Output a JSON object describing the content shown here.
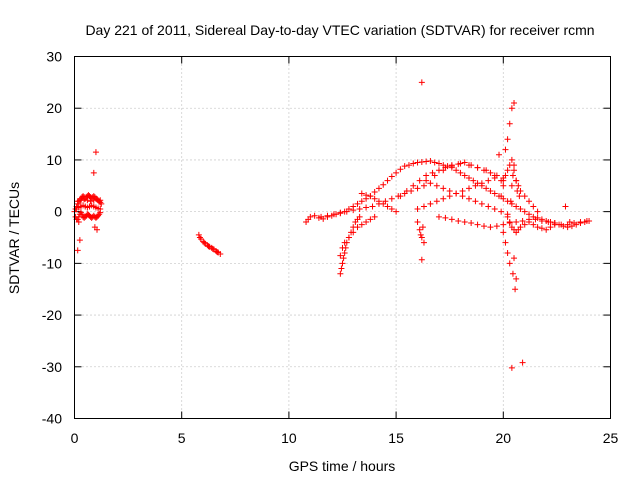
{
  "chart_data": {
    "type": "scatter",
    "title": "Day 221 of 2011, Sidereal Day-to-day VTEC variation (SDTVAR) for receiver rcmn",
    "xlabel": "GPS time / hours",
    "ylabel": "SDTVAR / TECUs",
    "xlim": [
      0,
      25
    ],
    "ylim": [
      -40,
      30
    ],
    "xticks": [
      0,
      5,
      10,
      15,
      20,
      25
    ],
    "yticks": [
      -40,
      -30,
      -20,
      -10,
      0,
      10,
      20,
      30
    ],
    "xtick_labels": [
      "0",
      "5",
      "10",
      "15",
      "20",
      "25"
    ],
    "ytick_labels": [
      "-40",
      "-30",
      "-20",
      "-10",
      "0",
      "10",
      "20",
      "30"
    ],
    "grid": true,
    "marker": "plus",
    "color": "#ff0000",
    "series": [
      {
        "name": "SDTVAR",
        "x": [
          0.0,
          0.05,
          0.1,
          0.15,
          0.2,
          0.25,
          0.3,
          0.35,
          0.4,
          0.45,
          0.5,
          0.55,
          0.6,
          0.65,
          0.7,
          0.75,
          0.8,
          0.85,
          0.9,
          0.95,
          1.0,
          1.05,
          1.1,
          1.15,
          1.2,
          1.25,
          0.05,
          0.1,
          0.15,
          0.2,
          0.25,
          0.3,
          0.35,
          0.4,
          0.45,
          0.5,
          0.55,
          0.6,
          0.65,
          0.7,
          0.75,
          0.8,
          0.85,
          0.9,
          0.95,
          1.0,
          1.05,
          1.1,
          1.15,
          1.2,
          0.1,
          0.2,
          0.3,
          0.4,
          0.5,
          0.6,
          0.7,
          0.8,
          0.9,
          1.0,
          1.1,
          1.2,
          0.15,
          0.3,
          0.45,
          0.6,
          0.75,
          0.9,
          1.05,
          1.2,
          0.2,
          0.15,
          0.25,
          1.05,
          0.95,
          0.9,
          1.0,
          5.8,
          5.9,
          6.0,
          6.1,
          6.2,
          6.3,
          6.4,
          6.5,
          6.6,
          6.7,
          6.8,
          5.85,
          6.05,
          6.25,
          6.45,
          6.65,
          10.8,
          10.9,
          11.0,
          11.2,
          11.4,
          11.6,
          11.8,
          12.0,
          12.2,
          12.4,
          12.6,
          12.8,
          13.0,
          13.2,
          13.4,
          13.6,
          13.8,
          14.0,
          14.2,
          14.4,
          14.6,
          14.8,
          15.0,
          15.2,
          15.4,
          15.6,
          15.8,
          16.0,
          16.2,
          16.4,
          16.6,
          16.8,
          17.0,
          17.2,
          17.4,
          17.6,
          17.8,
          18.0,
          18.2,
          18.4,
          18.6,
          18.8,
          19.0,
          19.2,
          19.4,
          19.6,
          19.8,
          20.0,
          20.2,
          20.4,
          20.6,
          20.8,
          21.0,
          21.2,
          21.4,
          21.6,
          21.8,
          22.0,
          22.2,
          22.4,
          22.6,
          22.8,
          23.0,
          23.2,
          23.4,
          23.6,
          23.8,
          24.0,
          11.5,
          11.8,
          12.1,
          12.4,
          12.7,
          13.0,
          13.3,
          13.6,
          13.9,
          14.2,
          14.5,
          14.8,
          15.1,
          15.4,
          15.7,
          16.0,
          16.3,
          16.6,
          16.9,
          17.2,
          17.5,
          17.8,
          18.1,
          18.4,
          18.7,
          19.0,
          19.3,
          19.6,
          19.9,
          20.2,
          12.4,
          12.5,
          12.6,
          12.8,
          13.0,
          13.2,
          13.4,
          13.6,
          13.8,
          14.0,
          12.4,
          12.45,
          12.5,
          12.55,
          12.6,
          12.65,
          12.7,
          12.8,
          12.9,
          13.0,
          13.1,
          13.2,
          13.3,
          13.4,
          13.6,
          13.8,
          14.0,
          14.2,
          14.4,
          14.6,
          14.8,
          15.0,
          15.2,
          15.5,
          15.8,
          16.1,
          16.4,
          16.7,
          17.0,
          17.3,
          17.6,
          17.9,
          18.2,
          18.5,
          18.8,
          19.1,
          19.4,
          19.7,
          20.0,
          16.0,
          16.3,
          16.6,
          16.9,
          17.2,
          17.5,
          17.8,
          18.1,
          18.4,
          18.7,
          19.0,
          19.3,
          19.6,
          16.4,
          16.8,
          17.2,
          17.6,
          18.0,
          18.4,
          18.8,
          19.2,
          19.6,
          20.0,
          17.0,
          17.3,
          17.6,
          17.9,
          18.2,
          18.5,
          18.8,
          19.1,
          19.4,
          19.7,
          20.0,
          20.3,
          20.6,
          20.9,
          21.2,
          21.5,
          21.8,
          22.1,
          22.4,
          22.7,
          23.0,
          23.3,
          23.6,
          23.9,
          16.0,
          16.1,
          16.2,
          16.3,
          16.15,
          16.25,
          19.9,
          20.0,
          20.1,
          20.2,
          20.3,
          20.4,
          20.5,
          20.6,
          20.7,
          20.8,
          21.0,
          21.2,
          21.4,
          21.6,
          20.2,
          20.3,
          20.4,
          20.5,
          20.6,
          20.7,
          20.8,
          21.0,
          21.2,
          21.4,
          21.6,
          21.8,
          22.0,
          22.2,
          22.4,
          20.35,
          20.4,
          20.45,
          20.5,
          20.6,
          20.65,
          20.75,
          20.1,
          20.2,
          20.3,
          20.4,
          20.5,
          20.0,
          20.1,
          20.2,
          20.3,
          20.45,
          20.55,
          16.2,
          16.2,
          20.4,
          20.9,
          20.6,
          20.5,
          22.9,
          23.1,
          19.8,
          19.9
        ],
        "y": [
          0.0,
          0.5,
          1.0,
          1.5,
          2.0,
          2.2,
          2.5,
          2.8,
          3.0,
          2.8,
          2.5,
          2.8,
          3.0,
          3.2,
          3.0,
          2.8,
          2.6,
          2.8,
          3.0,
          2.8,
          2.5,
          2.4,
          2.2,
          2.0,
          1.8,
          1.5,
          -1.0,
          -1.5,
          -1.5,
          -1.0,
          -0.5,
          -0.2,
          -0.5,
          -1.0,
          -1.2,
          -1.0,
          -0.8,
          -0.5,
          -0.6,
          -0.8,
          -1.0,
          -1.2,
          -1.0,
          -0.8,
          -1.0,
          -1.2,
          -1.0,
          -0.8,
          -0.5,
          -0.2,
          0.5,
          0.8,
          1.0,
          1.2,
          1.0,
          0.8,
          1.0,
          1.2,
          1.0,
          0.8,
          0.6,
          0.5,
          2.0,
          2.2,
          2.4,
          2.2,
          2.0,
          2.2,
          2.4,
          2.2,
          -2.0,
          -7.5,
          -5.5,
          -3.5,
          -3.0,
          7.5,
          11.5,
          -4.5,
          -5.3,
          -5.8,
          -6.2,
          -6.5,
          -6.8,
          -7.0,
          -7.3,
          -7.6,
          -7.9,
          -8.2,
          -5.0,
          -6.0,
          -6.7,
          -7.2,
          -7.8,
          -2.0,
          -1.5,
          -1.0,
          -0.8,
          -1.2,
          -1.4,
          -1.0,
          -0.8,
          -0.5,
          -0.2,
          0.0,
          0.5,
          1.0,
          1.5,
          2.0,
          2.5,
          3.0,
          3.8,
          4.5,
          5.2,
          6.0,
          6.8,
          7.5,
          8.2,
          8.8,
          9.0,
          9.3,
          9.5,
          9.6,
          9.7,
          9.8,
          9.5,
          9.3,
          9.0,
          8.8,
          8.5,
          8.0,
          7.5,
          7.0,
          6.5,
          6.0,
          5.5,
          5.0,
          4.5,
          4.0,
          3.5,
          3.0,
          2.5,
          2.0,
          1.5,
          1.0,
          0.5,
          0.0,
          -0.5,
          -1.0,
          -1.2,
          -1.5,
          -1.8,
          -2.0,
          -2.2,
          -2.5,
          -2.8,
          -3.0,
          -2.8,
          -2.5,
          -2.2,
          -2.0,
          -1.8,
          -1.0,
          -0.8,
          -0.5,
          -0.3,
          0.0,
          0.3,
          0.5,
          0.8,
          1.0,
          1.5,
          2.0,
          2.5,
          3.0,
          3.5,
          4.0,
          4.5,
          5.0,
          5.5,
          5.0,
          4.5,
          4.0,
          3.5,
          3.0,
          2.5,
          2.0,
          1.5,
          1.0,
          0.5,
          0.0,
          -0.5,
          -8.5,
          -7.0,
          -6.0,
          -5.0,
          -4.0,
          -3.0,
          -2.5,
          -2.0,
          -1.5,
          -1.0,
          -12.0,
          -11.0,
          -10.0,
          -9.0,
          -8.0,
          -7.0,
          -6.0,
          -5.0,
          -4.0,
          -3.0,
          -2.0,
          -1.5,
          -1.0,
          3.5,
          3.2,
          3.0,
          2.5,
          2.0,
          1.5,
          1.0,
          0.5,
          0.0,
          3.0,
          4.0,
          5.0,
          6.0,
          7.0,
          7.5,
          8.0,
          8.5,
          9.0,
          9.2,
          9.5,
          9.0,
          8.5,
          8.0,
          7.5,
          7.0,
          6.5,
          0.5,
          1.0,
          1.5,
          2.0,
          2.5,
          3.0,
          3.5,
          4.0,
          4.5,
          5.0,
          5.5,
          6.0,
          6.5,
          6.0,
          7.0,
          8.0,
          8.8,
          9.3,
          9.0,
          8.5,
          8.0,
          7.0,
          6.0,
          -1.0,
          -1.2,
          -1.5,
          -1.8,
          -2.0,
          -2.2,
          -2.5,
          -2.8,
          -3.0,
          -2.8,
          -2.5,
          -2.2,
          -2.0,
          -1.8,
          -1.5,
          -1.5,
          -1.8,
          -2.0,
          -2.2,
          -2.5,
          -2.5,
          -2.2,
          -2.0,
          -1.8,
          -2.0,
          -3.5,
          -5.0,
          -6.0,
          -4.5,
          -3.0,
          3.0,
          5.0,
          7.0,
          8.0,
          9.0,
          10.0,
          8.0,
          6.0,
          5.0,
          4.0,
          3.0,
          2.0,
          1.0,
          0.0,
          -1.0,
          -2.0,
          -3.0,
          -3.5,
          -4.0,
          -3.5,
          -3.0,
          -2.5,
          -2.0,
          -2.5,
          -3.0,
          -3.2,
          -3.5,
          -3.0,
          -2.5,
          2.0,
          5.0,
          7.0,
          9.0,
          6.0,
          4.0,
          3.0,
          12.0,
          14.0,
          17.0,
          20.0,
          21.0,
          -4.0,
          -6.0,
          -8.0,
          -10.0,
          -12.0,
          -15.0,
          25.0,
          -9.3,
          -30.2,
          -29.2,
          -13.0,
          -9.0,
          1.0,
          -2.0,
          11.0,
          6.0
        ]
      }
    ]
  }
}
